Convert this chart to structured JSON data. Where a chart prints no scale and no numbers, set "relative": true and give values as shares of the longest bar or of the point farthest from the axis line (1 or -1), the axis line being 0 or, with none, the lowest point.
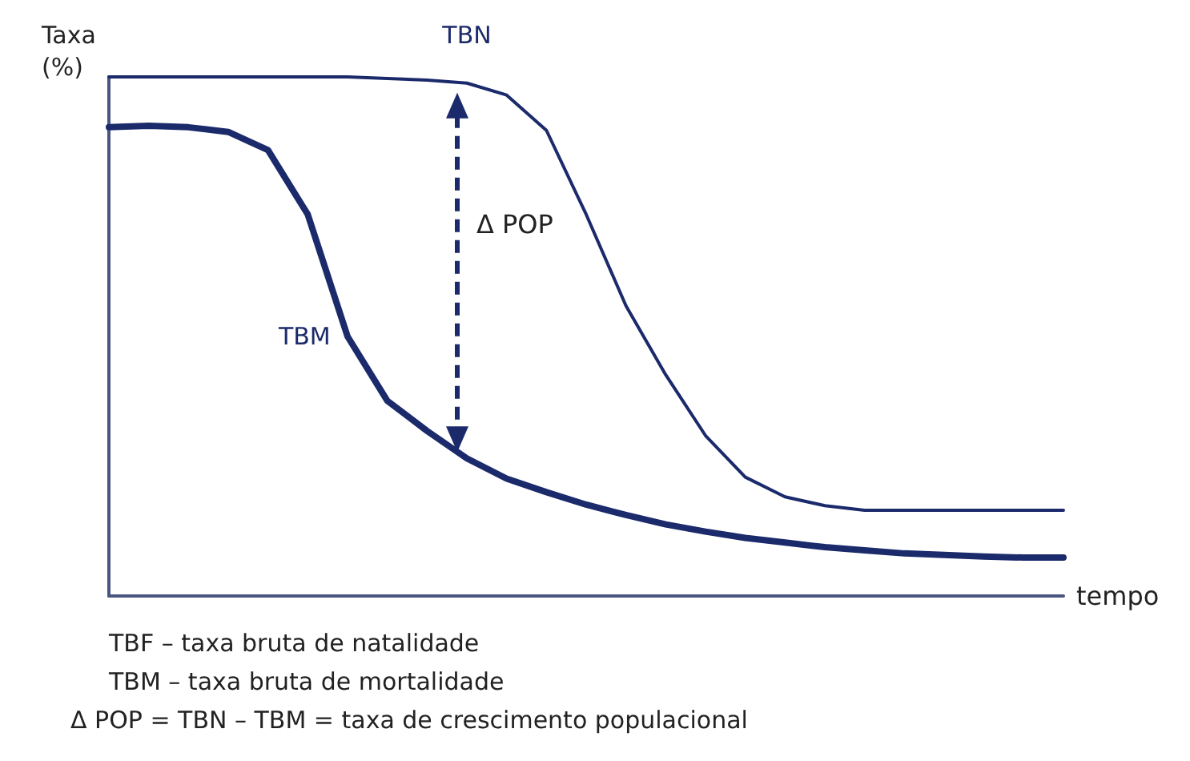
{
  "chart_data": {
    "type": "line",
    "relative": true,
    "ylabel": "Taxa\n(%)",
    "xlabel": "tempo",
    "legend": false,
    "grid": false,
    "marker": "none",
    "line_style": "solid",
    "categories": [
      null,
      null,
      null,
      null,
      null,
      null,
      null,
      null,
      null,
      null,
      null,
      null,
      null,
      null,
      null,
      null,
      null,
      null,
      null,
      null,
      null,
      null,
      null,
      null,
      null
    ],
    "series": [
      {
        "name": "TBN",
        "color": "#1b2a6b",
        "values": [
          1.0,
          1.0,
          1.0,
          1.0,
          1.0,
          1.0,
          1.0,
          0.997,
          0.994,
          0.988,
          0.965,
          0.897,
          0.735,
          0.559,
          0.426,
          0.309,
          0.229,
          0.191,
          0.174,
          0.165,
          0.165,
          0.165,
          0.165,
          0.165,
          0.165
        ]
      },
      {
        "name": "TBM",
        "color": "#1b2a6b",
        "values": [
          0.903,
          0.906,
          0.903,
          0.894,
          0.859,
          0.735,
          0.5,
          0.376,
          0.318,
          0.265,
          0.226,
          0.2,
          0.176,
          0.156,
          0.138,
          0.124,
          0.112,
          0.103,
          0.094,
          0.088,
          0.082,
          0.079,
          0.076,
          0.074,
          0.074
        ]
      }
    ],
    "annotations": [
      "Δ POP",
      "TBF – taxa bruta de natalidade",
      "TBM – taxa bruta de mortalidade",
      "Δ POP = TBN – TBM = taxa de crescimento populacional"
    ]
  }
}
